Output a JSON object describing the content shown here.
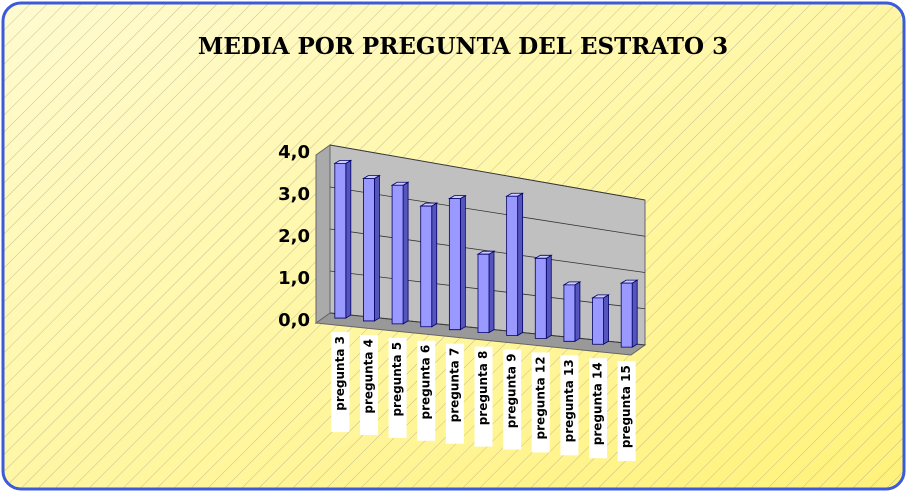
{
  "chart_data": {
    "type": "bar",
    "title": "MEDIA POR PREGUNTA DEL ESTRATO 3",
    "categories": [
      "pregunta 3",
      "pregunta 4",
      "pregunta 5",
      "pregunta 6",
      "pregunta 7",
      "pregunta 8",
      "pregunta 9",
      "pregunta 12",
      "pregunta 13",
      "pregunta 14",
      "pregunta 15"
    ],
    "values": [
      3.7,
      3.45,
      3.4,
      3.0,
      3.3,
      2.0,
      3.6,
      2.1,
      1.5,
      1.25,
      1.75
    ],
    "color": "#9999ff",
    "ylim": [
      0,
      4
    ],
    "yticks": [
      {
        "value": 0,
        "label": "0,0"
      },
      {
        "value": 1,
        "label": "1,0"
      },
      {
        "value": 2,
        "label": "2,0"
      },
      {
        "value": 3,
        "label": "3,0"
      },
      {
        "value": 4,
        "label": "4,0"
      }
    ],
    "grid": true
  }
}
